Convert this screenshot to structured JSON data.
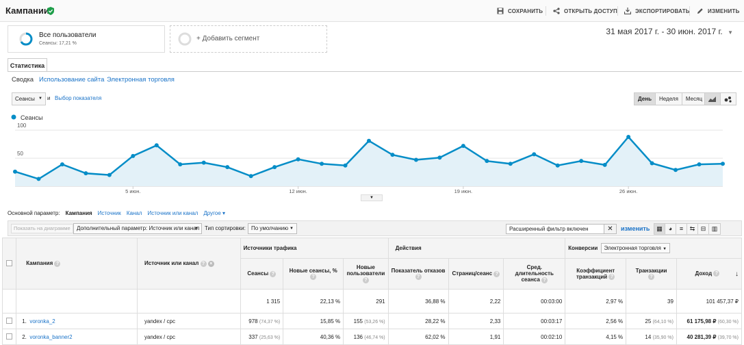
{
  "header": {
    "title": "Кампании",
    "save": "СОХРАНИТЬ",
    "share": "ОТКРЫТЬ ДОСТУП",
    "export": "ЭКСПОРТИРОВАТЬ",
    "edit": "ИЗМЕНИТЬ"
  },
  "segments": {
    "primary_label": "Все пользователи",
    "primary_sub": "Сеансы: 17,21 %",
    "add_label": "+ Добавить сегмент"
  },
  "date_range": "31 мая 2017 г. - 30 июн. 2017 г.",
  "tabs": {
    "active": "Статистика"
  },
  "subnav": [
    "Сводка",
    "Использование сайта",
    "Электронная торговля"
  ],
  "chart_controls": {
    "metric": "Сеансы",
    "and": "и",
    "choose_metric": "Выбор показателя",
    "periods": [
      "День",
      "Неделя",
      "Месяц"
    ],
    "active_period": "День",
    "accent": "#058dc7"
  },
  "chart_data": {
    "type": "area",
    "series": [
      {
        "name": "Сеансы",
        "values": [
          26,
          13,
          39,
          23,
          20,
          54,
          73,
          39,
          42,
          34,
          18,
          34,
          48,
          40,
          37,
          81,
          56,
          47,
          51,
          72,
          45,
          40,
          57,
          37,
          45,
          38,
          88,
          41,
          29,
          39,
          40
        ]
      }
    ],
    "y_ticks": [
      "100",
      "50"
    ],
    "ylim": [
      0,
      110
    ],
    "x_ticks": [
      "5 июн.",
      "12 июн.",
      "19 июн.",
      "26 июн."
    ],
    "x_tick_index": [
      5,
      12,
      19,
      26
    ]
  },
  "dimensions": {
    "label": "Основной параметр:",
    "items": [
      "Кампания",
      "Источник",
      "Канал",
      "Источник или канал",
      "Другое"
    ]
  },
  "toolbar": {
    "plot_rows": "Показать на диаграмме",
    "secondary": "Дополнительный параметр: Источник или канал",
    "sort_label": "Тип сортировки:",
    "sort_value": "По умолчанию",
    "filter_value": "Расширенный фильтр включен",
    "edit_link": "изменить"
  },
  "table": {
    "col_campaign": "Кампания",
    "col_source": "Источник или канал",
    "group_acq": "Источники трафика",
    "group_beh": "Действия",
    "group_conv": "Конверсии",
    "conv_select": "Электронная торговля",
    "headers": [
      "Сеансы",
      "Новые сеансы, %",
      "Новые пользователи",
      "Показатель отказов",
      "Страниц/сеанс",
      "Сред. длительность сеанса",
      "Коэффициент транзакций",
      "Транзакции",
      "Доход"
    ],
    "totals": [
      "1 315",
      "22,13 %",
      "291",
      "36,88 %",
      "2,22",
      "00:03:00",
      "2,97 %",
      "39",
      "101 457,37 ₽"
    ],
    "rows": [
      {
        "index": "1.",
        "campaign": "voronka_2",
        "source": "yandex / cpc",
        "sessions": "978",
        "sessions_pct": "(74,37 %)",
        "new_sessions": "15,85 %",
        "new_users": "155",
        "new_users_pct": "(53,26 %)",
        "bounce": "28,22 %",
        "pages": "2,33",
        "duration": "00:03:17",
        "conv_rate": "2,56 %",
        "transactions": "25",
        "transactions_pct": "(64,10 %)",
        "revenue": "61 175,98 ₽",
        "revenue_pct": "(60,30 %)"
      },
      {
        "index": "2.",
        "campaign": "voronka_banner2",
        "source": "yandex / cpc",
        "sessions": "337",
        "sessions_pct": "(25,63 %)",
        "new_sessions": "40,36 %",
        "new_users": "136",
        "new_users_pct": "(46,74 %)",
        "bounce": "62,02 %",
        "pages": "1,91",
        "duration": "00:02:10",
        "conv_rate": "4,15 %",
        "transactions": "14",
        "transactions_pct": "(35,90 %)",
        "revenue": "40 281,39 ₽",
        "revenue_pct": "(39,70 %)"
      }
    ]
  }
}
